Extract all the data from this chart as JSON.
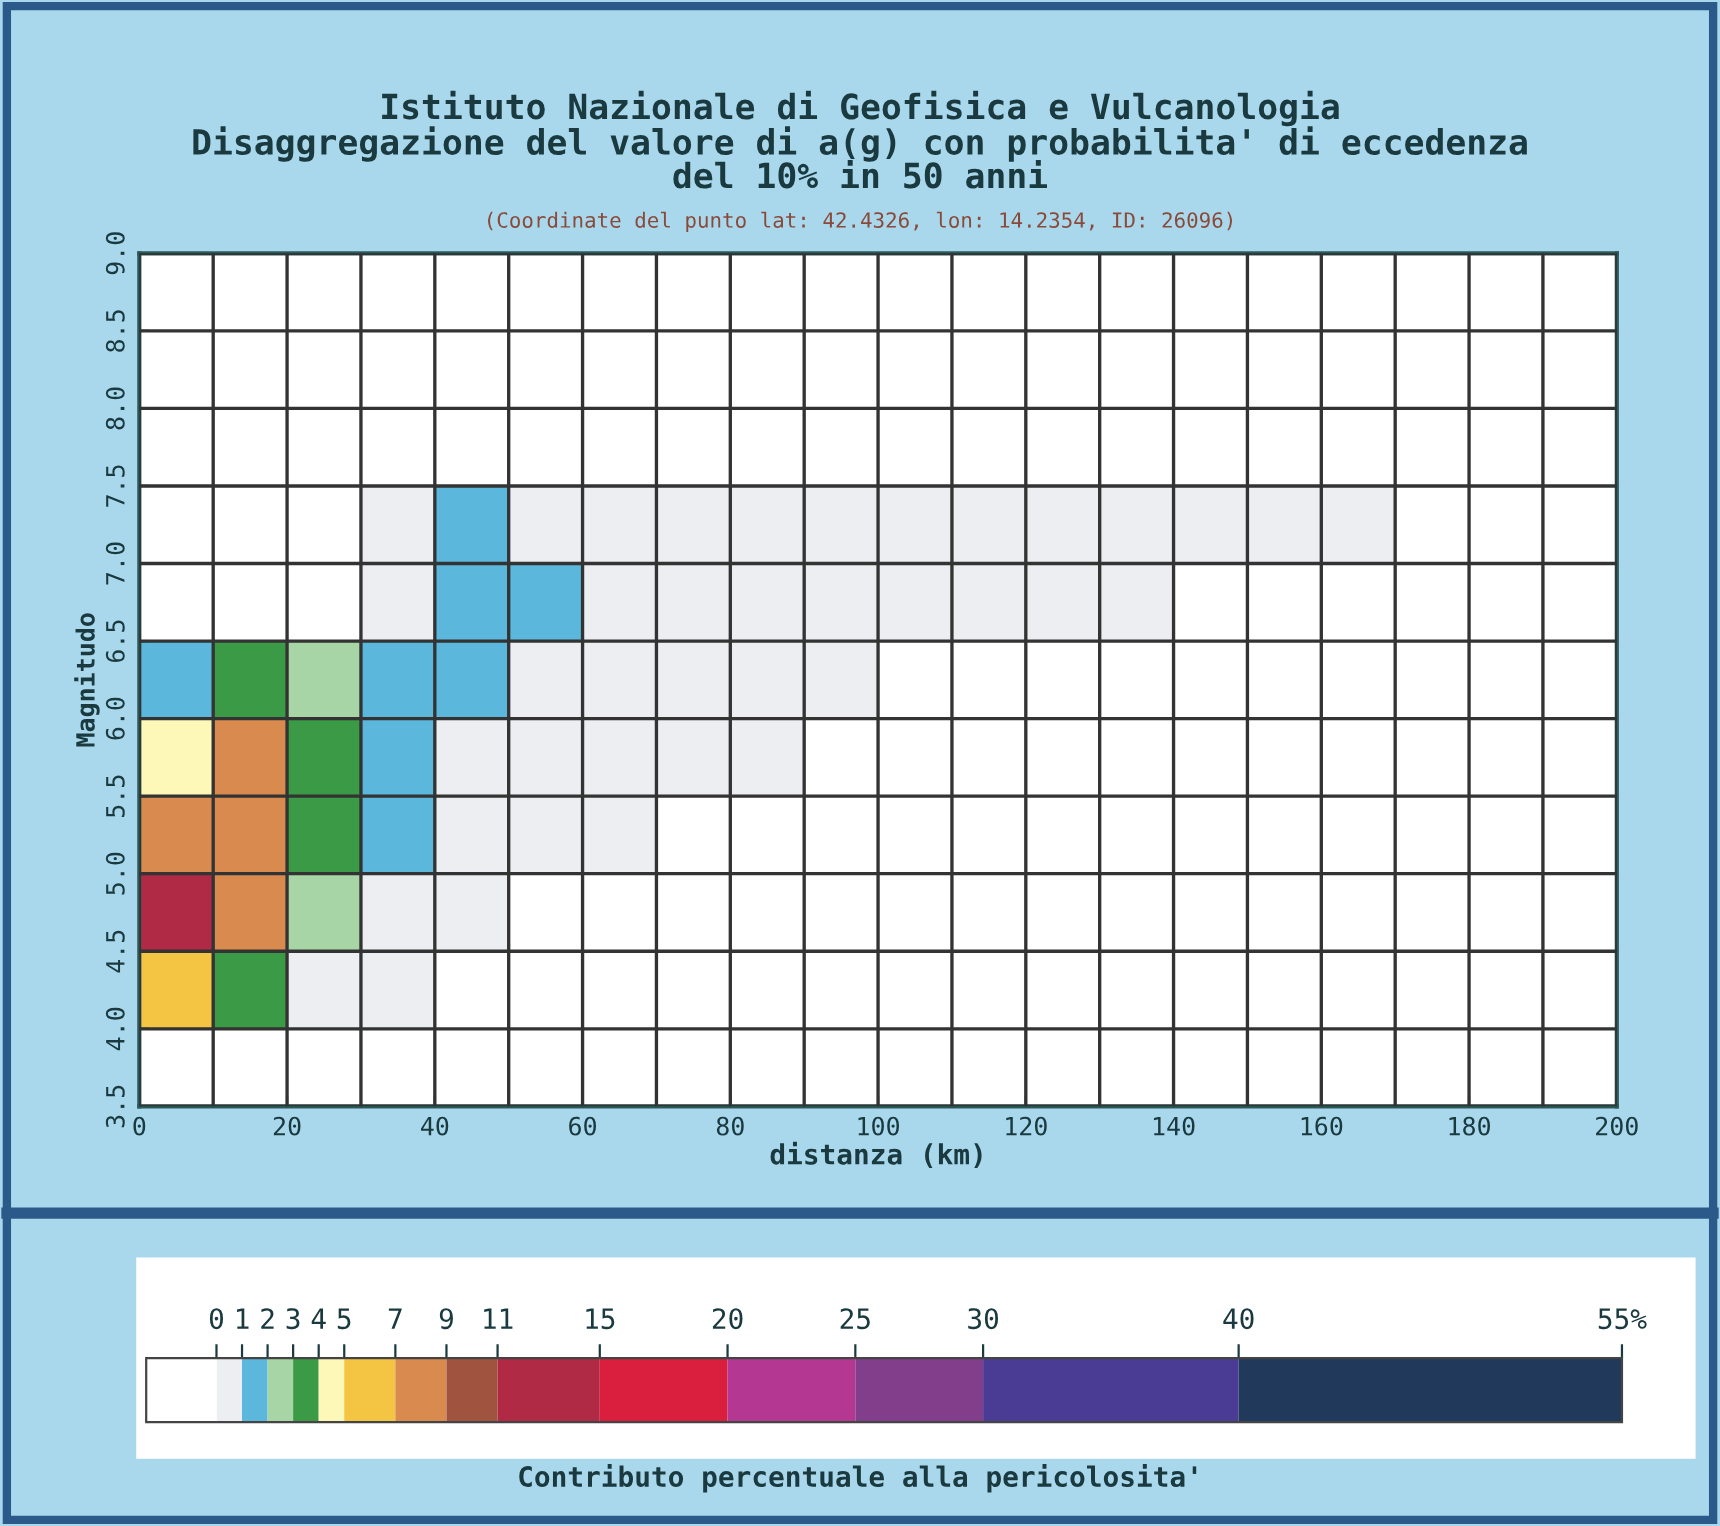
{
  "chart_data": {
    "type": "heatmap",
    "title": "Istituto Nazionale di Geofisica e Vulcanologia\nDisaggregazione del valore di a(g) con probabilita' di eccedenza\ndel 10% in 50 anni",
    "subtitle": "(Coordinate del punto lat: 42.4326, lon: 14.2354, ID: 26096)",
    "xlabel": "distanza (km)",
    "ylabel": "Magnitudo",
    "clabel": "Contributo percentuale alla pericolosita'",
    "x": [
      5,
      15,
      25,
      35,
      45,
      55,
      65,
      75,
      85,
      95,
      105,
      115,
      125,
      135,
      145,
      155,
      165,
      175,
      185,
      195
    ],
    "y": [
      8.75,
      8.25,
      7.75,
      7.25,
      6.75,
      6.25,
      5.75,
      5.25,
      4.75,
      4.25,
      3.75
    ],
    "cells": [
      [
        0,
        0,
        0,
        0,
        0,
        0,
        0,
        0,
        0,
        0,
        0,
        0,
        0,
        0,
        0,
        0,
        0,
        0,
        0,
        0
      ],
      [
        0,
        0,
        0,
        0,
        0,
        0,
        0,
        0,
        0,
        0,
        0,
        0,
        0,
        0,
        0,
        0,
        0,
        0,
        0,
        0
      ],
      [
        0,
        0,
        0,
        0,
        0,
        0,
        0,
        0,
        0,
        0,
        0,
        0,
        0,
        0,
        0,
        0,
        0,
        0,
        0,
        0
      ],
      [
        0,
        0,
        0,
        0.5,
        1.5,
        0.5,
        0.5,
        0.5,
        0.5,
        0.5,
        0.5,
        0.5,
        0.5,
        0.5,
        0.5,
        0.5,
        0.5,
        0,
        0,
        0
      ],
      [
        0,
        0,
        0,
        0.5,
        1.5,
        1.5,
        0.5,
        0.5,
        0.5,
        0.5,
        0.5,
        0.5,
        0.5,
        0.5,
        0,
        0,
        0,
        0,
        0,
        0
      ],
      [
        1.5,
        3.5,
        2.5,
        1.5,
        1.5,
        0.5,
        0.5,
        0.5,
        0.5,
        0.5,
        0,
        0,
        0,
        0,
        0,
        0,
        0,
        0,
        0,
        0
      ],
      [
        4.5,
        8,
        3.5,
        1.5,
        0.5,
        0.5,
        0.5,
        0.5,
        0.5,
        0,
        0,
        0,
        0,
        0,
        0,
        0,
        0,
        0,
        0,
        0
      ],
      [
        8,
        8,
        3.5,
        1.5,
        0.5,
        0.5,
        0.5,
        0,
        0,
        0,
        0,
        0,
        0,
        0,
        0,
        0,
        0,
        0,
        0,
        0
      ],
      [
        13,
        8,
        2.5,
        0.5,
        0.5,
        0,
        0,
        0,
        0,
        0,
        0,
        0,
        0,
        0,
        0,
        0,
        0,
        0,
        0,
        0
      ],
      [
        6,
        3.5,
        0.5,
        0.5,
        0,
        0,
        0,
        0,
        0,
        0,
        0,
        0,
        0,
        0,
        0,
        0,
        0,
        0,
        0,
        0
      ],
      [
        0,
        0,
        0,
        0,
        0,
        0,
        0,
        0,
        0,
        0,
        0,
        0,
        0,
        0,
        0,
        0,
        0,
        0,
        0,
        0
      ]
    ],
    "colors": [
      "#ffffff",
      "#eceef2",
      "#5bb7dc",
      "#a8d5a6",
      "#3a9a45",
      "#fdf8b8",
      "#f4c443",
      "#d98a4e",
      "#a0533f",
      "#b02a45",
      "#d91f3d",
      "#b43891",
      "#823d8b",
      "#4a3c94",
      "#213a5c"
    ],
    "cticks": [
      0,
      1,
      2,
      3,
      4,
      5,
      7,
      9,
      11,
      15,
      20,
      25,
      30,
      40,
      {
        "value": 55,
        "label": "55%"
      }
    ],
    "xlim": [
      0,
      200
    ],
    "ylim": [
      3.5,
      9.0
    ],
    "xticks": [
      0,
      20,
      40,
      60,
      80,
      100,
      120,
      140,
      160,
      180,
      200
    ],
    "yticks": [
      3.5,
      {
        "value": 4.0,
        "label": "4.0"
      },
      4.5,
      {
        "value": 5.0,
        "label": "5.0"
      },
      5.5,
      {
        "value": 6.0,
        "label": "6.0"
      },
      6.5,
      {
        "value": 7.0,
        "label": "7.0"
      },
      7.5,
      {
        "value": 8.0,
        "label": "8.0"
      },
      8.5,
      {
        "value": 9.0,
        "label": "9.0"
      }
    ],
    "grid": true
  }
}
